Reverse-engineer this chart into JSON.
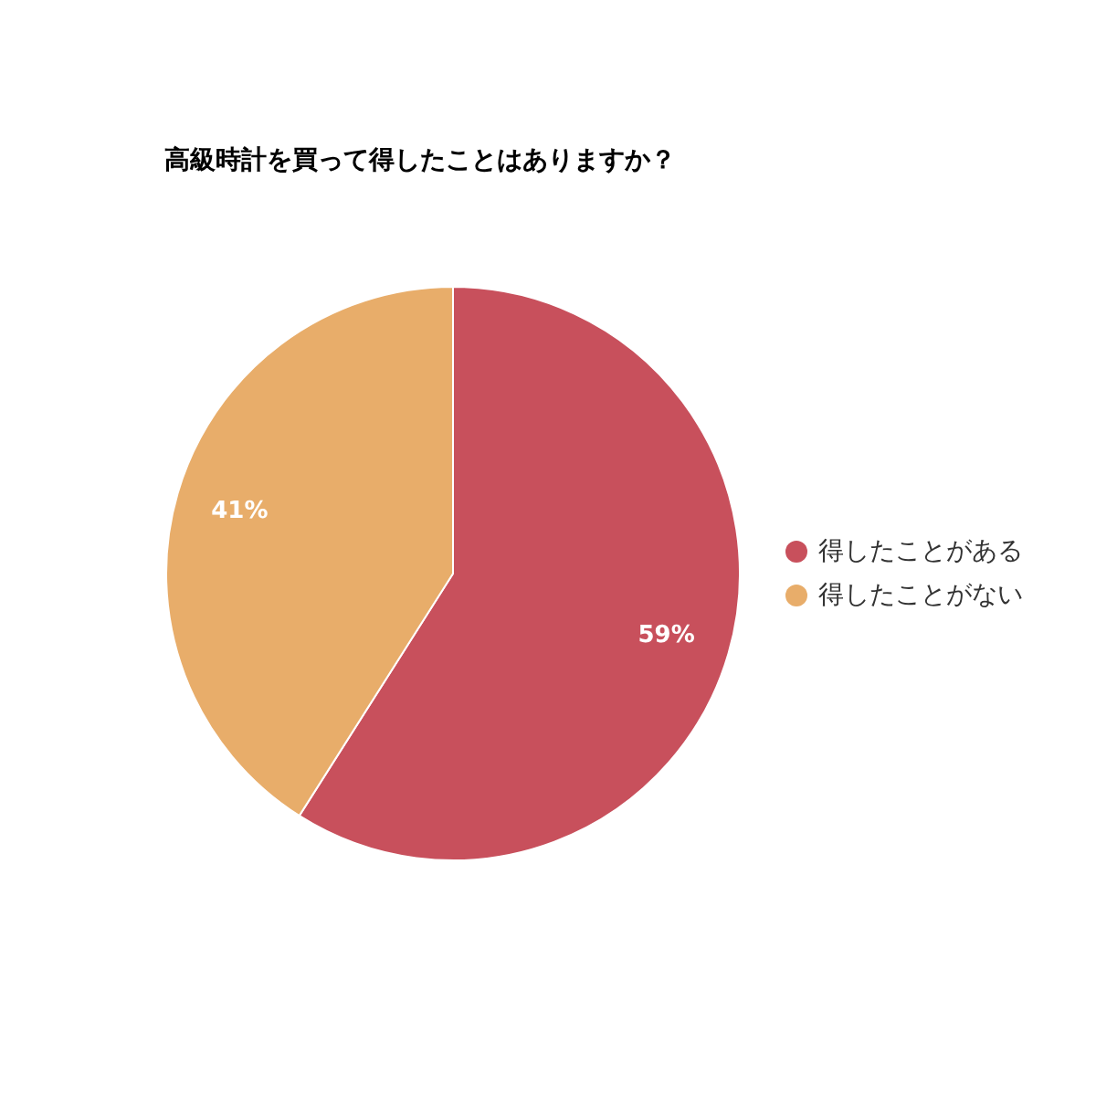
{
  "chart_data": {
    "type": "pie",
    "title": "高級時計を買って得したことはありますか？",
    "categories": [
      "得したことがある",
      "得したことがない"
    ],
    "values": [
      59,
      41
    ],
    "colors": [
      "#c8505c",
      "#e8ad6a"
    ],
    "value_labels": [
      "59%",
      "41%"
    ],
    "legend": "right"
  }
}
